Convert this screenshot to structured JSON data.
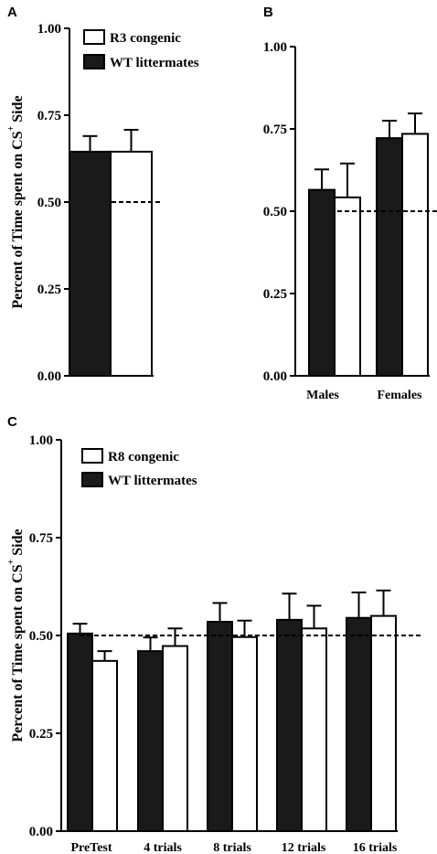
{
  "chart_data": [
    {
      "panel": "A",
      "type": "bar",
      "ylabel": "Percent of Time spent on CS+ Side",
      "ylabel_main": "Percent of Time spent on CS",
      "ylabel_sup": "+",
      "ylabel_tail": " Side",
      "ylim": [
        0,
        1
      ],
      "yticks": [
        "0.00",
        "0.25",
        "0.50",
        "0.75",
        "1.00"
      ],
      "reference_line": 0.5,
      "categories": [
        ""
      ],
      "series": [
        {
          "name": "WT littermates",
          "color": "#1a1a1a",
          "values": [
            0.645
          ],
          "errors": [
            0.045
          ]
        },
        {
          "name": "R3 congenic",
          "color": "#ffffff",
          "values": [
            0.645
          ],
          "errors": [
            0.063
          ]
        }
      ],
      "legend": [
        "R3 congenic",
        "WT littermates"
      ]
    },
    {
      "panel": "B",
      "type": "bar",
      "ylim": [
        0,
        1
      ],
      "yticks": [
        "0.00",
        "0.25",
        "0.50",
        "0.75",
        "1.00"
      ],
      "reference_line": 0.5,
      "categories": [
        "Males",
        "Females"
      ],
      "series": [
        {
          "name": "WT littermates",
          "color": "#1a1a1a",
          "values": [
            0.565,
            0.722
          ],
          "errors": [
            0.062,
            0.053
          ]
        },
        {
          "name": "R3 congenic",
          "color": "#ffffff",
          "values": [
            0.542,
            0.735
          ],
          "errors": [
            0.103,
            0.062
          ]
        }
      ]
    },
    {
      "panel": "C",
      "type": "bar",
      "ylabel": "Percent of Time spent on CS+ Side",
      "ylabel_main": "Percent of Time spent on CS",
      "ylabel_sup": "+",
      "ylabel_tail": " Side",
      "ylim": [
        0,
        1
      ],
      "yticks": [
        "0.00",
        "0.25",
        "0.50",
        "0.75",
        "1.00"
      ],
      "reference_line": 0.5,
      "categories": [
        "PreTest",
        "4 trials",
        "8 trials",
        "12 trials",
        "16 trials"
      ],
      "series": [
        {
          "name": "WT littermates",
          "color": "#1a1a1a",
          "values": [
            0.505,
            0.46,
            0.535,
            0.54,
            0.545
          ],
          "errors": [
            0.025,
            0.035,
            0.048,
            0.067,
            0.065
          ]
        },
        {
          "name": "R8 congenic",
          "color": "#ffffff",
          "values": [
            0.435,
            0.473,
            0.496,
            0.518,
            0.55
          ],
          "errors": [
            0.025,
            0.045,
            0.042,
            0.058,
            0.065
          ]
        }
      ],
      "legend": [
        "R8 congenic",
        "WT littermates"
      ]
    }
  ]
}
